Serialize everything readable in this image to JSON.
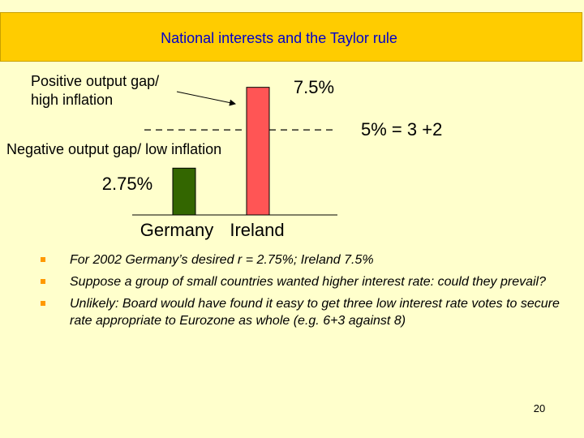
{
  "slide": {
    "title": "National interests and the Taylor rule",
    "page_number": "20"
  },
  "chart_data": {
    "type": "bar",
    "categories": [
      "Germany",
      "Ireland"
    ],
    "values": [
      2.75,
      7.5
    ],
    "value_labels": [
      "2.75%",
      "7.5%"
    ],
    "colors": [
      "#336600",
      "#FF5555"
    ],
    "reference_line": {
      "value": 5,
      "label": "5% = 3 +2",
      "style": "dashed"
    },
    "annotations": {
      "positive_gap": [
        "Positive output gap/",
        "high inflation"
      ],
      "negative_gap": "Negative output gap/ low inflation"
    },
    "ylim": [
      0,
      9.2
    ],
    "title": "",
    "xlabel": "",
    "ylabel": ""
  },
  "bullets": [
    "For 2002 Germany’s desired r = 2.75%;  Ireland 7.5%",
    "Suppose a group of small countries wanted higher interest rate: could they prevail?",
    "Unlikely: Board would have found it easy to get three low interest rate votes to secure rate appropriate to Eurozone as whole (e.g. 6+3 against 8)"
  ],
  "bullet_color": "#FF9900"
}
